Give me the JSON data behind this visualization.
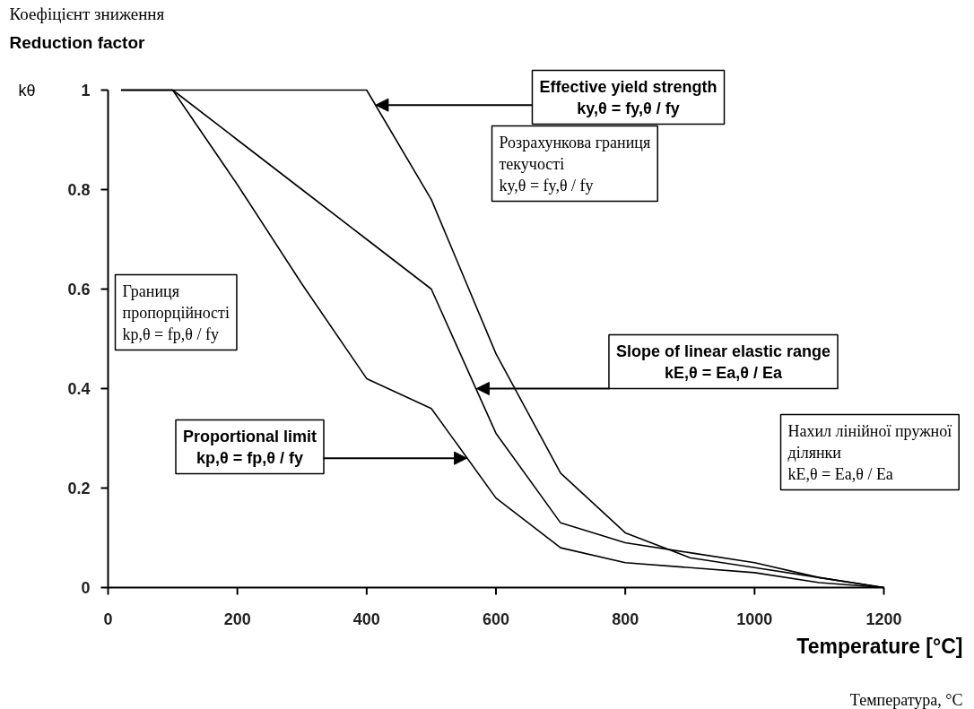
{
  "chart_data": {
    "type": "line",
    "title": "Коефіцієнт зниження",
    "subtitle": "Reduction factor",
    "ylabel": "kθ",
    "xlabel": "Temperature [°C]",
    "x": [
      20,
      100,
      200,
      300,
      400,
      500,
      600,
      700,
      800,
      900,
      1000,
      1100,
      1200
    ],
    "series": [
      {
        "color": "#000000",
        "values": [
          1,
          1,
          1,
          1,
          1,
          0.78,
          0.47,
          0.23,
          0.11,
          0.06,
          0.04,
          0.02,
          0
        ]
      },
      {
        "color": "#000000",
        "values": [
          1,
          1,
          0.9,
          0.8,
          0.7,
          0.6,
          0.31,
          0.13,
          0.09,
          0.07,
          0.05,
          0.02,
          0
        ]
      },
      {
        "color": "#000000",
        "values": [
          1,
          1,
          0.81,
          0.61,
          0.42,
          0.36,
          0.18,
          0.08,
          0.05,
          0.04,
          0.03,
          0.01,
          0
        ]
      }
    ],
    "xlim": [
      0,
      1200
    ],
    "ylim": [
      0,
      1
    ],
    "xticks": [
      0,
      200,
      400,
      600,
      800,
      1000,
      1200
    ],
    "yticks": [
      0,
      0.2,
      0.4,
      0.6,
      0.8,
      1
    ],
    "grid": false,
    "annotations": [
      {
        "text": "Effective yield strength\nky,θ = fy,θ / fy",
        "x": 414,
        "y": 0.97
      },
      "Розрахункова границя\nтекучості\nky,θ = fy,θ / fy",
      "Границя\nпропорційності\nkp,θ = fp,θ / fy",
      {
        "text": "Proportional limit\nkp,θ = fp,θ / fy",
        "x": 555,
        "y": 0.26
      },
      {
        "text": "Slope of linear elastic range\nkE,θ = Ea,θ / Ea",
        "x": 570,
        "y": 0.4
      },
      "Нахил лінійної пружної\nділянки\nkE,θ = Ea,θ / Ea",
      "Температура, °C"
    ]
  }
}
